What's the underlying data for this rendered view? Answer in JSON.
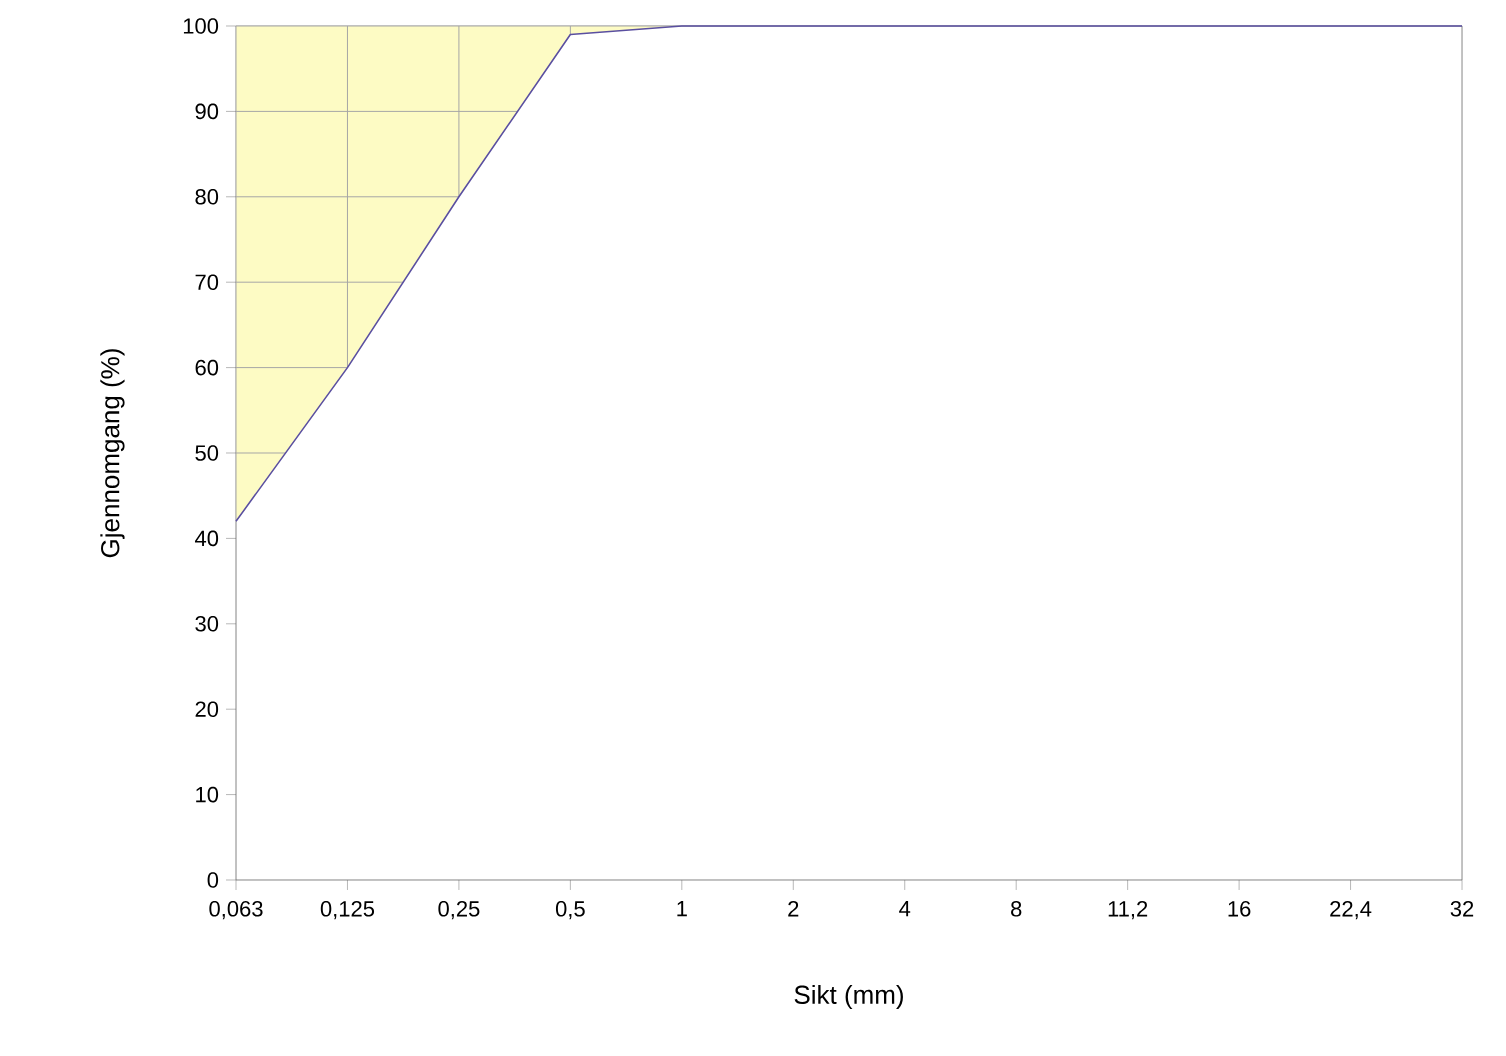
{
  "chart_data": {
    "type": "line",
    "xlabel": "Sikt (mm)",
    "ylabel": "Gjennomgang (%)",
    "categories": [
      "0,063",
      "0,125",
      "0,25",
      "0,5",
      "1",
      "2",
      "4",
      "8",
      "11,2",
      "16",
      "22,4",
      "32"
    ],
    "series": [
      {
        "color": "#5a4fa0",
        "values": [
          42,
          60,
          80,
          99,
          100,
          100,
          100,
          100,
          100,
          100,
          100,
          100
        ],
        "lower": [
          42,
          60,
          80,
          99,
          100,
          100,
          100,
          100,
          100,
          100,
          100,
          100
        ],
        "upper": [
          100,
          100,
          100,
          100,
          100,
          100,
          100,
          100,
          100,
          100,
          100,
          100
        ]
      }
    ],
    "ylim": [
      0,
      100
    ],
    "yticks": [
      0,
      10,
      20,
      30,
      40,
      50,
      60,
      70,
      80,
      90,
      100
    ],
    "grid": true,
    "marker": "none",
    "line_style": "solid"
  }
}
